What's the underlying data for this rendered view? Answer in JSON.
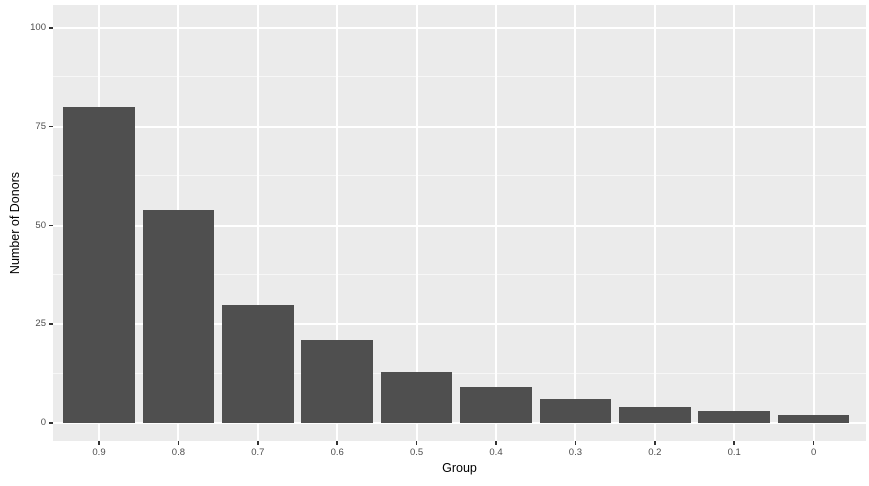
{
  "chart_data": {
    "type": "bar",
    "title": "",
    "xlabel": "Group",
    "ylabel": "Number of Donors",
    "categories": [
      "0.9",
      "0.8",
      "0.7",
      "0.6",
      "0.5",
      "0.4",
      "0.3",
      "0.2",
      "0.1",
      "0"
    ],
    "values": [
      80,
      54,
      30,
      21,
      13,
      9,
      6,
      4,
      3,
      2
    ],
    "yticks": [
      "0",
      "25",
      "50",
      "75",
      "100"
    ],
    "ytick_values": [
      0,
      25,
      50,
      75,
      100
    ],
    "yminor_values": [
      12.5,
      37.5,
      62.5,
      87.5
    ],
    "ylim": [
      0,
      100
    ],
    "grid": "on",
    "legend": "none",
    "theme": "ggplot2-grey"
  },
  "colors": {
    "background": "#FFFFFF",
    "panel_bg": "#EBEBEB",
    "gridline_major": "#FFFFFF",
    "gridline_minor": "#F5F5F5",
    "bar_fill": "#4F4F4F",
    "tick_label": "#4D4D4D",
    "tick_mark": "#333333",
    "axis_title": "#000000"
  }
}
